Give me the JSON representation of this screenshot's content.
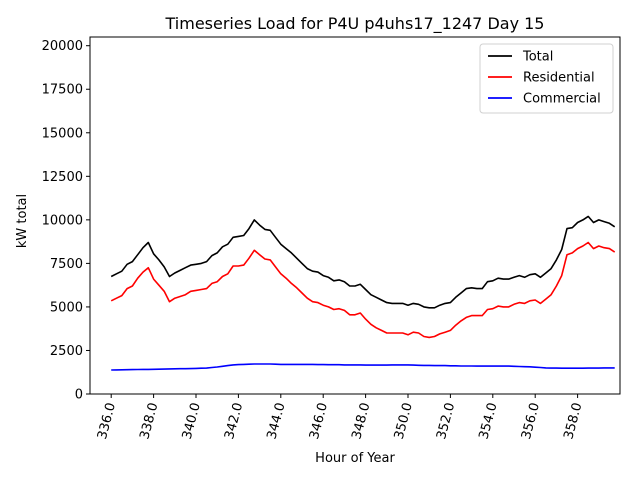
{
  "chart_data": {
    "type": "line",
    "title": "Timeseries Load for P4U p4uhs17_1247  Day 15",
    "xlabel": "Hour of Year",
    "ylabel": "kW total",
    "xlim": [
      335.0,
      360.0
    ],
    "ylim": [
      0,
      20500
    ],
    "x_ticks": [
      336,
      338,
      340,
      342,
      344,
      346,
      348,
      350,
      352,
      354,
      356,
      358
    ],
    "x_tick_labels": [
      "336.0",
      "338.0",
      "340.0",
      "342.0",
      "344.0",
      "346.0",
      "348.0",
      "350.0",
      "352.0",
      "354.0",
      "356.0",
      "358.0"
    ],
    "y_ticks": [
      0,
      2500,
      5000,
      7500,
      10000,
      12500,
      15000,
      17500,
      20000
    ],
    "y_tick_labels": [
      "0",
      "2500",
      "5000",
      "7500",
      "10000",
      "12500",
      "15000",
      "17500",
      "20000"
    ],
    "grid": false,
    "legend_position": "top-right",
    "x": [
      336.0,
      336.25,
      336.5,
      336.75,
      337.0,
      337.25,
      337.5,
      337.75,
      338.0,
      338.25,
      338.5,
      338.75,
      339.0,
      339.25,
      339.5,
      339.75,
      340.0,
      340.25,
      340.5,
      340.75,
      341.0,
      341.25,
      341.5,
      341.75,
      342.0,
      342.25,
      342.5,
      342.75,
      343.0,
      343.25,
      343.5,
      343.75,
      344.0,
      344.25,
      344.5,
      344.75,
      345.0,
      345.25,
      345.5,
      345.75,
      346.0,
      346.25,
      346.5,
      346.75,
      347.0,
      347.25,
      347.5,
      347.75,
      348.0,
      348.25,
      348.5,
      348.75,
      349.0,
      349.25,
      349.5,
      349.75,
      350.0,
      350.25,
      350.5,
      350.75,
      351.0,
      351.25,
      351.5,
      351.75,
      352.0,
      352.25,
      352.5,
      352.75,
      353.0,
      353.25,
      353.5,
      353.75,
      354.0,
      354.25,
      354.5,
      354.75,
      355.0,
      355.25,
      355.5,
      355.75,
      356.0,
      356.25,
      356.5,
      356.75,
      357.0,
      357.25,
      357.5,
      357.75,
      358.0,
      358.25,
      358.5,
      358.75,
      359.0,
      359.25,
      359.5,
      359.75
    ],
    "series": [
      {
        "name": "Total",
        "color": "#000000",
        "values": [
          6750,
          6900,
          7050,
          7450,
          7600,
          8000,
          8400,
          8700,
          8050,
          7700,
          7300,
          6750,
          6950,
          7100,
          7250,
          7400,
          7450,
          7500,
          7600,
          7950,
          8100,
          8450,
          8600,
          9000,
          9050,
          9100,
          9500,
          10000,
          9700,
          9450,
          9400,
          9000,
          8600,
          8350,
          8100,
          7800,
          7500,
          7200,
          7050,
          7000,
          6800,
          6700,
          6500,
          6550,
          6450,
          6200,
          6200,
          6300,
          6000,
          5700,
          5550,
          5400,
          5250,
          5200,
          5200,
          5200,
          5100,
          5200,
          5150,
          5000,
          4950,
          4950,
          5100,
          5200,
          5250,
          5550,
          5800,
          6050,
          6100,
          6050,
          6050,
          6450,
          6500,
          6650,
          6600,
          6600,
          6700,
          6800,
          6700,
          6850,
          6900,
          6700,
          6950,
          7200,
          7700,
          8300,
          9500,
          9550,
          9850,
          10000,
          10200,
          9850,
          10000,
          9900,
          9800,
          9600
        ]
      },
      {
        "name": "Residential",
        "color": "#ff0000",
        "values": [
          5350,
          5500,
          5650,
          6050,
          6200,
          6650,
          7000,
          7250,
          6600,
          6250,
          5900,
          5300,
          5500,
          5600,
          5700,
          5900,
          5950,
          6000,
          6050,
          6350,
          6450,
          6750,
          6900,
          7350,
          7350,
          7400,
          7800,
          8250,
          8000,
          7750,
          7700,
          7300,
          6900,
          6650,
          6350,
          6100,
          5800,
          5500,
          5300,
          5250,
          5100,
          5000,
          4850,
          4900,
          4800,
          4550,
          4550,
          4650,
          4300,
          4000,
          3800,
          3650,
          3500,
          3500,
          3500,
          3500,
          3400,
          3550,
          3500,
          3300,
          3250,
          3300,
          3450,
          3550,
          3650,
          3950,
          4200,
          4400,
          4500,
          4500,
          4500,
          4850,
          4900,
          5050,
          5000,
          5000,
          5150,
          5250,
          5200,
          5350,
          5400,
          5200,
          5450,
          5700,
          6200,
          6800,
          8000,
          8100,
          8350,
          8500,
          8700,
          8350,
          8500,
          8400,
          8350,
          8150
        ]
      },
      {
        "name": "Commercial",
        "color": "#0000ff",
        "values": [
          1380,
          1385,
          1390,
          1395,
          1400,
          1405,
          1410,
          1415,
          1420,
          1425,
          1430,
          1440,
          1445,
          1450,
          1455,
          1460,
          1470,
          1480,
          1490,
          1520,
          1550,
          1590,
          1630,
          1670,
          1690,
          1700,
          1710,
          1720,
          1720,
          1720,
          1720,
          1710,
          1700,
          1700,
          1700,
          1700,
          1700,
          1700,
          1700,
          1690,
          1690,
          1680,
          1680,
          1680,
          1670,
          1670,
          1670,
          1670,
          1660,
          1660,
          1660,
          1660,
          1660,
          1670,
          1670,
          1670,
          1670,
          1660,
          1650,
          1640,
          1640,
          1630,
          1630,
          1630,
          1620,
          1620,
          1610,
          1610,
          1610,
          1600,
          1600,
          1600,
          1600,
          1600,
          1610,
          1600,
          1590,
          1580,
          1570,
          1560,
          1540,
          1520,
          1500,
          1490,
          1490,
          1480,
          1480,
          1480,
          1480,
          1480,
          1490,
          1490,
          1490,
          1500,
          1500,
          1500
        ]
      }
    ]
  }
}
